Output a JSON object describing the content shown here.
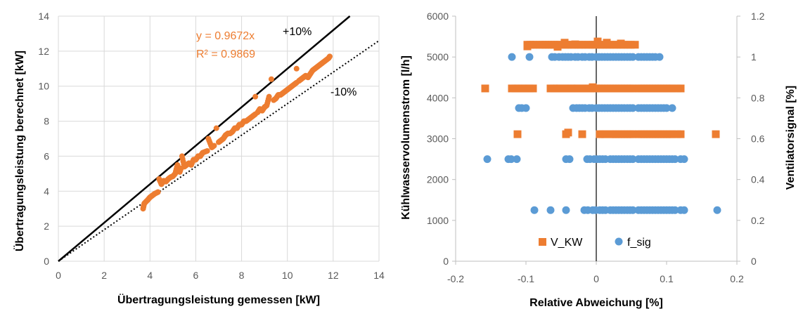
{
  "chart_data": [
    {
      "type": "scatter",
      "xlabel": "Übertragungsleistung gemessen [kW]",
      "ylabel": "Übertragungsleistung berechnet [kW]",
      "xlim": [
        0,
        14
      ],
      "ylim": [
        0,
        14
      ],
      "xticks": [
        "0",
        "2",
        "4",
        "6",
        "8",
        "10",
        "12",
        "14"
      ],
      "yticks": [
        "0",
        "2",
        "4",
        "6",
        "8",
        "10",
        "12",
        "14"
      ],
      "grid": true,
      "colors": {
        "points": "#ED7D31",
        "lines": "#000000"
      },
      "annotations": {
        "equation": "y = 0.9672x",
        "r2": "R² = 0.9869",
        "plus_label": "+10%",
        "minus_label": "-10%"
      },
      "reference_lines": [
        {
          "label": "+10%",
          "slope": 1.1,
          "style": "solid"
        },
        {
          "label": "-10%",
          "slope": 0.9,
          "style": "dotted"
        }
      ],
      "series": [
        {
          "points": [
            [
              3.7,
              3.0
            ],
            [
              3.75,
              3.3
            ],
            [
              3.9,
              3.5
            ],
            [
              4.0,
              3.65
            ],
            [
              4.1,
              3.75
            ],
            [
              4.2,
              3.85
            ],
            [
              4.35,
              3.95
            ],
            [
              4.4,
              4.7
            ],
            [
              4.5,
              4.4
            ],
            [
              4.6,
              4.6
            ],
            [
              4.7,
              4.55
            ],
            [
              4.8,
              4.7
            ],
            [
              4.9,
              4.8
            ],
            [
              5.0,
              4.85
            ],
            [
              5.1,
              5.0
            ],
            [
              5.2,
              5.5
            ],
            [
              5.3,
              5.1
            ],
            [
              5.35,
              5.3
            ],
            [
              5.4,
              6.0
            ],
            [
              5.5,
              5.4
            ],
            [
              5.6,
              5.5
            ],
            [
              5.7,
              5.6
            ],
            [
              5.8,
              5.5
            ],
            [
              5.9,
              5.8
            ],
            [
              6.0,
              5.8
            ],
            [
              6.1,
              6.0
            ],
            [
              6.2,
              6.0
            ],
            [
              6.3,
              6.2
            ],
            [
              6.5,
              6.3
            ],
            [
              6.55,
              7.0
            ],
            [
              6.7,
              6.5
            ],
            [
              6.8,
              6.6
            ],
            [
              6.9,
              7.6
            ],
            [
              7.0,
              6.8
            ],
            [
              7.1,
              6.9
            ],
            [
              7.2,
              7.0
            ],
            [
              7.3,
              7.2
            ],
            [
              7.4,
              7.3
            ],
            [
              7.5,
              7.3
            ],
            [
              7.6,
              7.4
            ],
            [
              7.7,
              7.6
            ],
            [
              7.8,
              7.6
            ],
            [
              7.9,
              7.8
            ],
            [
              8.0,
              7.8
            ],
            [
              8.1,
              8.0
            ],
            [
              8.2,
              8.0
            ],
            [
              8.3,
              8.1
            ],
            [
              8.4,
              8.2
            ],
            [
              8.5,
              8.3
            ],
            [
              8.6,
              8.4
            ],
            [
              8.7,
              8.5
            ],
            [
              8.8,
              8.7
            ],
            [
              8.9,
              8.6
            ],
            [
              9.0,
              8.8
            ],
            [
              9.1,
              8.9
            ],
            [
              9.2,
              9.4
            ],
            [
              9.3,
              10.4
            ],
            [
              9.4,
              9.2
            ],
            [
              9.5,
              9.3
            ],
            [
              9.6,
              9.5
            ],
            [
              9.7,
              9.5
            ],
            [
              9.8,
              9.6
            ],
            [
              9.9,
              9.7
            ],
            [
              10.0,
              9.8
            ],
            [
              10.1,
              9.9
            ],
            [
              10.2,
              10.0
            ],
            [
              10.3,
              10.1
            ],
            [
              10.4,
              10.2
            ],
            [
              10.5,
              10.3
            ],
            [
              10.6,
              10.4
            ],
            [
              10.7,
              10.5
            ],
            [
              10.8,
              10.6
            ],
            [
              10.9,
              10.5
            ],
            [
              11.0,
              10.7
            ],
            [
              11.1,
              10.9
            ],
            [
              11.2,
              11.0
            ],
            [
              11.3,
              11.1
            ],
            [
              11.4,
              11.2
            ],
            [
              11.5,
              11.3
            ],
            [
              11.6,
              11.4
            ],
            [
              11.7,
              11.5
            ],
            [
              11.8,
              11.6
            ],
            [
              11.85,
              11.7
            ],
            [
              10.4,
              11.0
            ],
            [
              8.6,
              9.4
            ]
          ]
        }
      ]
    },
    {
      "type": "scatter",
      "xlabel": "Relative Abweichung [%]",
      "ylabel": "Kühlwasservolumenstrom  [l/h]",
      "y2label": "Ventilatorsignal  [%]",
      "xlim": [
        -0.2,
        0.2
      ],
      "ylim": [
        0,
        6000
      ],
      "y2lim": [
        0,
        1.2
      ],
      "xticks": [
        "-0.2",
        "-0.1",
        "0",
        "0.1",
        "0.2"
      ],
      "yticks": [
        "0",
        "1000",
        "2000",
        "3000",
        "4000",
        "5000",
        "6000"
      ],
      "y2ticks": [
        "0",
        "0.2",
        "0.4",
        "0.6",
        "0.8",
        "1",
        "1.2"
      ],
      "grid": false,
      "legend": "bottom",
      "series": [
        {
          "name": "V_KW",
          "axis": "left",
          "marker": "square",
          "color": "#ED7D31",
          "rows": [
            {
              "y": 5300,
              "x": [
                -0.098,
                -0.08,
                -0.06,
                -0.045,
                -0.035,
                -0.025,
                -0.015,
                -0.005,
                0.005,
                0.015,
                0.025,
                0.035,
                0.045,
                0.055
              ]
            },
            {
              "y": 4230,
              "x": [
                -0.158,
                -0.12,
                -0.115,
                -0.105,
                -0.095,
                -0.09,
                -0.065,
                -0.06,
                -0.045,
                -0.035,
                -0.02,
                -0.01,
                0,
                0.02,
                0.04,
                0.06,
                0.08,
                0.1,
                0.115,
                0.12
              ]
            },
            {
              "y": 3110,
              "x": [
                -0.112,
                -0.043,
                -0.02,
                0.005,
                0.02,
                0.04,
                0.06,
                0.08,
                0.1,
                0.115,
                0.12,
                0.17
              ]
            }
          ],
          "extra_points": [
            [
              -0.098,
              5260
            ],
            [
              -0.055,
              5250
            ],
            [
              -0.045,
              5350
            ],
            [
              -0.03,
              5310
            ],
            [
              0.002,
              5380
            ],
            [
              0.015,
              5350
            ],
            [
              0.035,
              5330
            ],
            [
              -0.005,
              4260
            ],
            [
              -0.04,
              3150
            ]
          ]
        },
        {
          "name": "f_sig",
          "axis": "right",
          "marker": "circle",
          "color": "#5B9BD5",
          "rows": [
            {
              "y2": 1.0,
              "x": [
                -0.12,
                -0.095,
                -0.063,
                -0.053,
                -0.048,
                -0.04,
                -0.03,
                -0.02,
                -0.01,
                0,
                0.02,
                0.04,
                0.06,
                0.08,
                0.09
              ]
            },
            {
              "y2": 0.75,
              "x": [
                -0.11,
                -0.1,
                -0.033,
                -0.028,
                -0.02,
                -0.01,
                0,
                0.02,
                0.04,
                0.06,
                0.08,
                0.1,
                0.108
              ]
            },
            {
              "y2": 0.5,
              "x": [
                -0.155,
                -0.125,
                -0.113,
                -0.043,
                -0.038,
                -0.013,
                -0.003,
                0.005,
                0.02,
                0.04,
                0.06,
                0.08,
                0.1,
                0.12,
                0.125
              ]
            },
            {
              "y2": 0.25,
              "x": [
                -0.088,
                -0.065,
                -0.043,
                -0.017,
                -0.012,
                -0.005,
                0.005,
                0.02,
                0.04,
                0.06,
                0.08,
                0.1,
                0.12,
                0.125,
                0.172
              ]
            }
          ]
        }
      ]
    }
  ]
}
